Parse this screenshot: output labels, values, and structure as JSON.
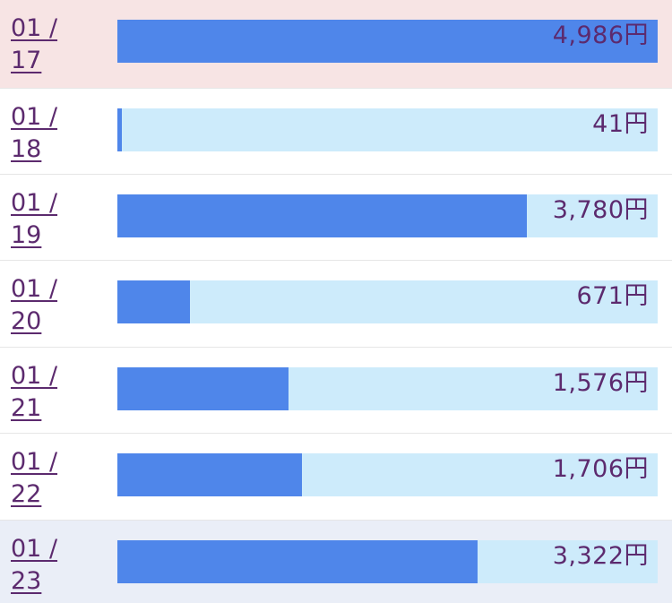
{
  "chart_data": {
    "type": "bar",
    "orientation": "horizontal",
    "categories": [
      "01 / 17",
      "01 / 18",
      "01 / 19",
      "01 / 20",
      "01 / 21",
      "01 / 22",
      "01 / 23"
    ],
    "values": [
      4986,
      41,
      3780,
      671,
      1576,
      1706,
      3322
    ],
    "value_labels": [
      "4,986円",
      "41円",
      "3,780円",
      "671円",
      "1,576円",
      "1,706円",
      "3,322円"
    ],
    "xlim": [
      0,
      4986
    ],
    "grid": false,
    "legend": "none"
  },
  "rows": [
    {
      "month": "01 /",
      "day": "17",
      "value_label": "4,986円",
      "highlight": "pink"
    },
    {
      "month": "01 /",
      "day": "18",
      "value_label": "41円",
      "highlight": "none"
    },
    {
      "month": "01 /",
      "day": "19",
      "value_label": "3,780円",
      "highlight": "none"
    },
    {
      "month": "01 /",
      "day": "20",
      "value_label": "671円",
      "highlight": "none"
    },
    {
      "month": "01 /",
      "day": "21",
      "value_label": "1,576円",
      "highlight": "none"
    },
    {
      "month": "01 /",
      "day": "22",
      "value_label": "1,706円",
      "highlight": "none"
    },
    {
      "month": "01 /",
      "day": "23",
      "value_label": "3,322円",
      "highlight": "blue"
    }
  ],
  "colors": {
    "bar_fill": "#4f86ea",
    "bar_track": "#cdebfb",
    "text": "#5c2a6e",
    "highlight_pink": "#f7e4e4",
    "highlight_blue": "#eaeef7",
    "row_background": "#ffffff"
  }
}
